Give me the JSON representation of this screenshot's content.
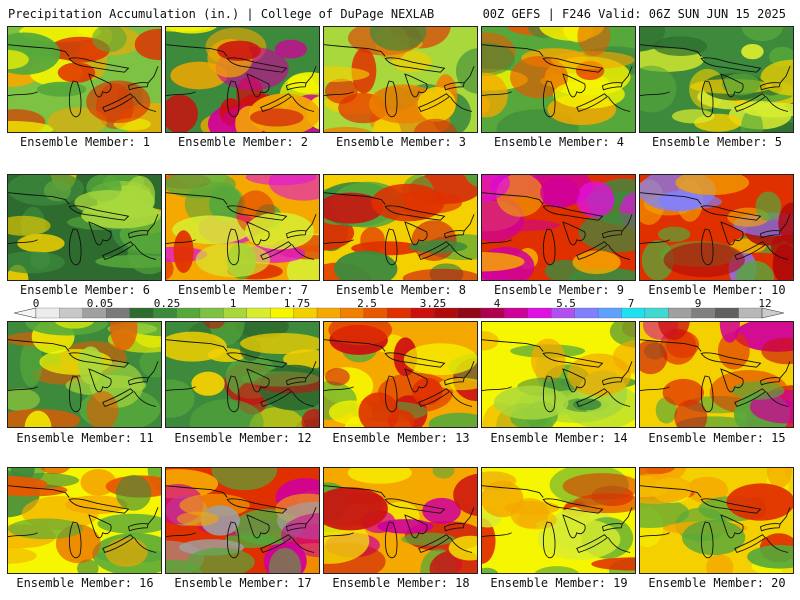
{
  "header": {
    "left": "Precipitation Accumulation (in.) | College of DuPage NEXLAB",
    "right": "00Z GEFS | F246 Valid: 06Z SUN JUN 15 2025"
  },
  "scale": {
    "ticks": [
      "0",
      "0.05",
      "0.25",
      "1",
      "1.75",
      "2.5",
      "3.25",
      "4",
      "5.5",
      "7",
      "9",
      "12"
    ],
    "colors": [
      "#ececec",
      "#c8c8c8",
      "#a0a0a0",
      "#7a7a7a",
      "#2e6b2e",
      "#3d8a3d",
      "#56a83a",
      "#7dc242",
      "#a8d83c",
      "#d8ec30",
      "#f6f600",
      "#f4d000",
      "#f4a800",
      "#ef8000",
      "#e85800",
      "#e03000",
      "#cc1010",
      "#b00a0a",
      "#900818",
      "#b00050",
      "#d0009a",
      "#e010e0",
      "#b050f0",
      "#8080ff",
      "#60a0ff",
      "#20e0f0",
      "#40d8d0",
      "#a0a0a0",
      "#808080",
      "#606060",
      "#b8b8b8"
    ]
  },
  "panels": [
    {
      "label": "Ensemble Member: 1",
      "palette": [
        "#7dc242",
        "#f6f600",
        "#e03000",
        "#56a83a",
        "#f4a800"
      ]
    },
    {
      "label": "Ensemble Member: 2",
      "palette": [
        "#3d8a3d",
        "#f4a800",
        "#cc1010",
        "#d0009a",
        "#f6f600"
      ]
    },
    {
      "label": "Ensemble Member: 3",
      "palette": [
        "#a8d83c",
        "#f4d000",
        "#e03000",
        "#3d8a3d",
        "#ef8000"
      ]
    },
    {
      "label": "Ensemble Member: 4",
      "palette": [
        "#56a83a",
        "#f6f600",
        "#e85800",
        "#3d8a3d",
        "#f4a800"
      ]
    },
    {
      "label": "Ensemble Member: 5",
      "palette": [
        "#3d8a3d",
        "#56a83a",
        "#d8ec30",
        "#2e6b2e",
        "#f4d000"
      ]
    },
    {
      "label": "Ensemble Member: 6",
      "palette": [
        "#2e6b2e",
        "#56a83a",
        "#a8d83c",
        "#3d8a3d",
        "#f4d000"
      ]
    },
    {
      "label": "Ensemble Member: 7",
      "palette": [
        "#f4a800",
        "#e03000",
        "#d8ec30",
        "#e010e0",
        "#56a83a"
      ]
    },
    {
      "label": "Ensemble Member: 8",
      "palette": [
        "#f4d000",
        "#e03000",
        "#3d8a3d",
        "#56a83a",
        "#cc1010"
      ]
    },
    {
      "label": "Ensemble Member: 9",
      "palette": [
        "#e03000",
        "#d0009a",
        "#f4a800",
        "#3d8a3d",
        "#e010e0"
      ]
    },
    {
      "label": "Ensemble Member: 10",
      "palette": [
        "#e03000",
        "#f4a800",
        "#56a83a",
        "#b00a0a",
        "#8080ff"
      ]
    },
    {
      "label": "Ensemble Member: 11",
      "palette": [
        "#3d8a3d",
        "#f6f600",
        "#e85800",
        "#56a83a",
        "#a8d83c"
      ]
    },
    {
      "label": "Ensemble Member: 12",
      "palette": [
        "#3d8a3d",
        "#56a83a",
        "#f4d000",
        "#2e6b2e",
        "#cc1010"
      ]
    },
    {
      "label": "Ensemble Member: 13",
      "palette": [
        "#f4a800",
        "#e03000",
        "#f6f600",
        "#cc1010",
        "#56a83a"
      ]
    },
    {
      "label": "Ensemble Member: 14",
      "palette": [
        "#f6f600",
        "#a8d83c",
        "#f4a800",
        "#3d8a3d",
        "#56a83a"
      ]
    },
    {
      "label": "Ensemble Member: 15",
      "palette": [
        "#f4d000",
        "#e03000",
        "#56a83a",
        "#cc1010",
        "#d0009a"
      ]
    },
    {
      "label": "Ensemble Member: 16",
      "palette": [
        "#f6f600",
        "#56a83a",
        "#f4a800",
        "#3d8a3d",
        "#e85800"
      ]
    },
    {
      "label": "Ensemble Member: 17",
      "palette": [
        "#e03000",
        "#f4a800",
        "#56a83a",
        "#a0a0a0",
        "#d0009a"
      ]
    },
    {
      "label": "Ensemble Member: 18",
      "palette": [
        "#f4a800",
        "#cc1010",
        "#56a83a",
        "#f6f600",
        "#d0009a"
      ]
    },
    {
      "label": "Ensemble Member: 19",
      "palette": [
        "#f6f600",
        "#f4a800",
        "#e03000",
        "#56a83a",
        "#d8ec30"
      ]
    },
    {
      "label": "Ensemble Member: 20",
      "palette": [
        "#f4d000",
        "#f4a800",
        "#e03000",
        "#f6f600",
        "#56a83a"
      ]
    }
  ]
}
